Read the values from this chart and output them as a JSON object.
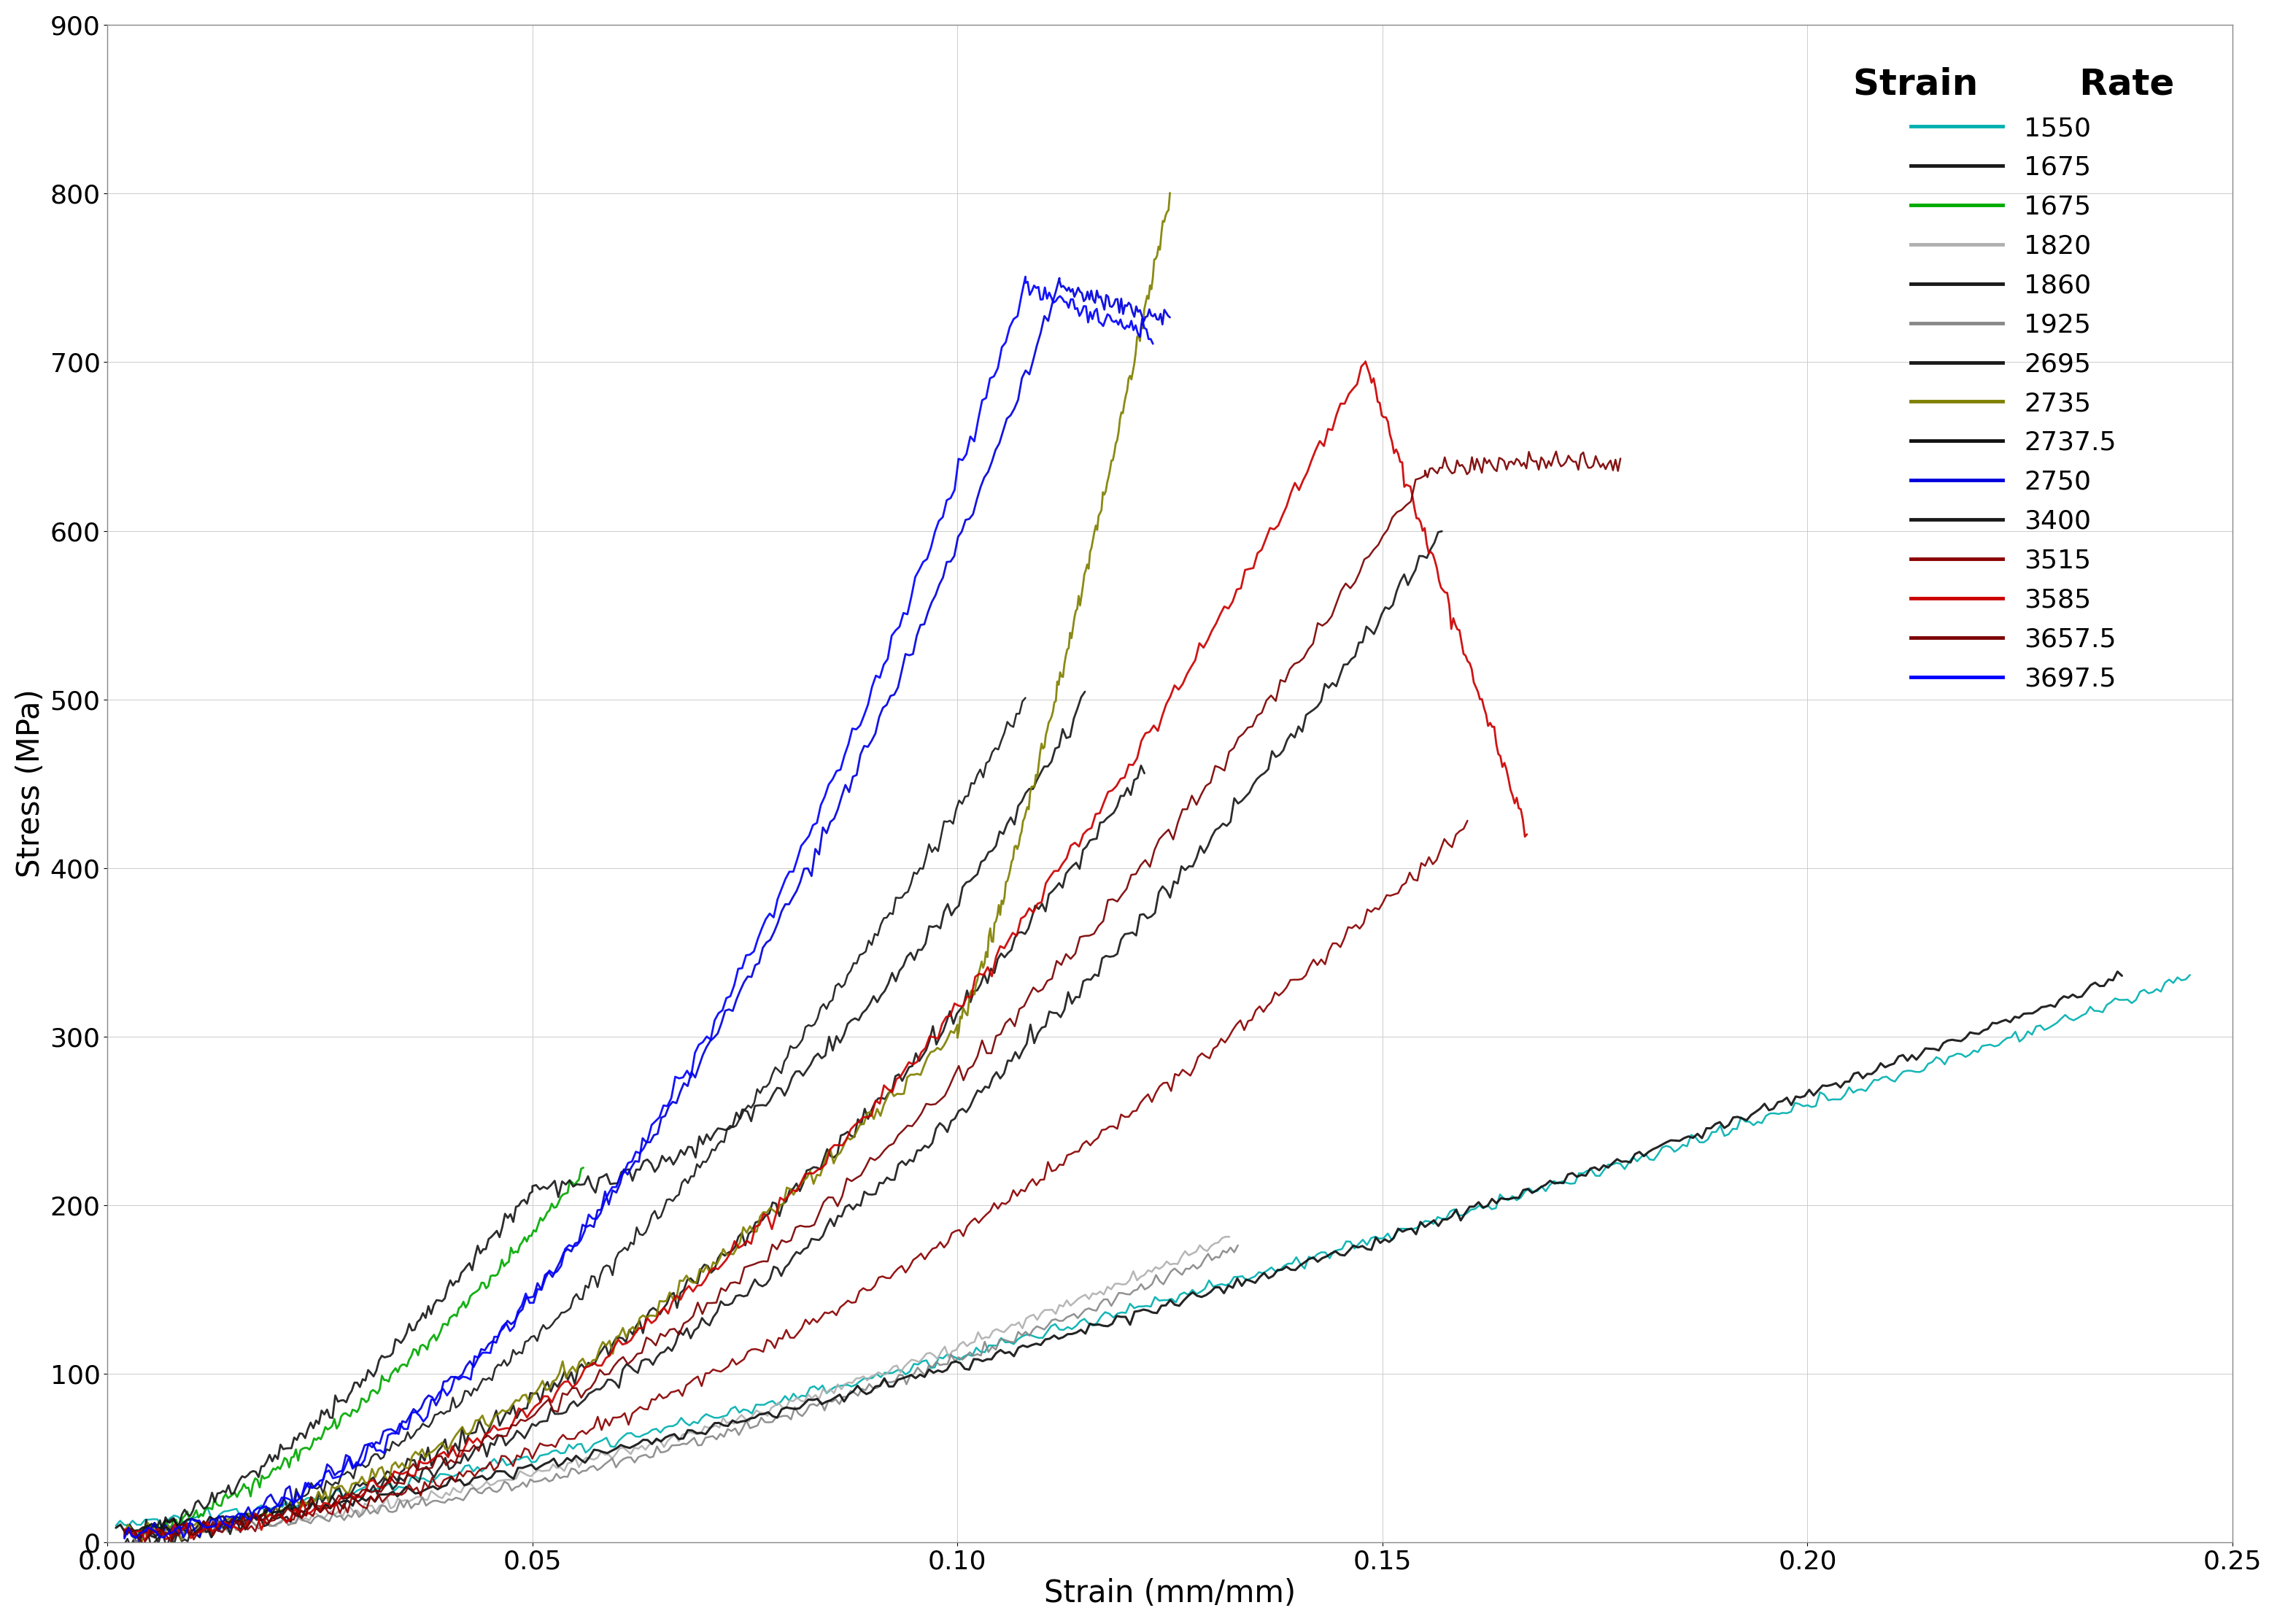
{
  "xlabel": "Strain (mm/mm)",
  "ylabel": "Stress (MPa)",
  "xlim": [
    0,
    0.25
  ],
  "ylim": [
    0,
    900
  ],
  "xticks": [
    0,
    0.05,
    0.1,
    0.15,
    0.2,
    0.25
  ],
  "yticks": [
    0,
    100,
    200,
    300,
    400,
    500,
    600,
    700,
    800,
    900
  ],
  "legend_title": "Strain        Rate",
  "legend_title_fontsize": 36,
  "legend_fontsize": 26,
  "axis_label_fontsize": 30,
  "tick_fontsize": 26,
  "background_color": "#ffffff",
  "series": [
    {
      "label": "1550",
      "color": "#00b0b0",
      "lw": 1.8
    },
    {
      "label": "1675",
      "color": "#1a1a1a",
      "lw": 1.8
    },
    {
      "label": "1675",
      "color": "#00aa00",
      "lw": 2.0
    },
    {
      "label": "1820",
      "color": "#b0b0b0",
      "lw": 1.8
    },
    {
      "label": "1860",
      "color": "#1a1a1a",
      "lw": 2.0
    },
    {
      "label": "1925",
      "color": "#888888",
      "lw": 1.8
    },
    {
      "label": "2695",
      "color": "#1a1a1a",
      "lw": 2.0
    },
    {
      "label": "2735",
      "color": "#808000",
      "lw": 2.0
    },
    {
      "label": "2737.5",
      "color": "#111111",
      "lw": 2.2
    },
    {
      "label": "2750",
      "color": "#0000dd",
      "lw": 2.0
    },
    {
      "label": "3400",
      "color": "#1a1a1a",
      "lw": 2.0
    },
    {
      "label": "3515",
      "color": "#8b0000",
      "lw": 1.8
    },
    {
      "label": "3585",
      "color": "#cc0000",
      "lw": 2.0
    },
    {
      "label": "3657.5",
      "color": "#7b0000",
      "lw": 1.8
    },
    {
      "label": "3697.5",
      "color": "#0000ff",
      "lw": 2.0
    }
  ]
}
